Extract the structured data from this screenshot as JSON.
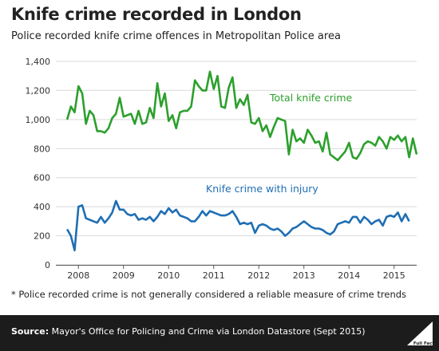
{
  "header": {
    "title": "Knife crime recorded in London",
    "subtitle": "Police recorded knife crime offences in Metropolitan Police area"
  },
  "note": "* Police recorded crime is not generally considered a reliable measure of crime trends",
  "footer": {
    "source_label": "Source:",
    "source_text": " Mayor's Office for Policing and Crime via London Datastore (Sept 2015)",
    "logo_text": "Full Fact"
  },
  "colors": {
    "total": "#2ca02c",
    "injury": "#1f6eb4",
    "grid": "#d9d9d9",
    "axis": "#555555",
    "footer_bg": "#1c1c1c"
  },
  "chart_data": {
    "type": "line",
    "x_start_year": 2007.75,
    "x_step_months": 1,
    "xlim": [
      2007.5,
      2015.5
    ],
    "ylim": [
      0,
      1400
    ],
    "y_ticks": [
      0,
      200,
      400,
      600,
      800,
      1000,
      1200,
      1400
    ],
    "y_tick_labels": [
      "0",
      "200",
      "400",
      "600",
      "800",
      "1,000",
      "1,200",
      "1,400"
    ],
    "x_ticks": [
      2008,
      2009,
      2010,
      2011,
      2012,
      2013,
      2014,
      2015
    ],
    "x_tick_labels": [
      "2008",
      "2009",
      "2010",
      "2011",
      "2012",
      "2013",
      "2014",
      "2015"
    ],
    "grid": true,
    "series": [
      {
        "name": "Total knife crime",
        "values": [
          1000,
          1090,
          1050,
          1230,
          1180,
          970,
          1060,
          1030,
          920,
          920,
          910,
          940,
          1010,
          1040,
          1150,
          1020,
          1030,
          1040,
          970,
          1060,
          970,
          980,
          1080,
          1010,
          1250,
          1090,
          1180,
          990,
          1030,
          940,
          1050,
          1060,
          1060,
          1090,
          1270,
          1230,
          1200,
          1200,
          1330,
          1210,
          1300,
          1090,
          1080,
          1220,
          1290,
          1080,
          1140,
          1100,
          1170,
          980,
          970,
          1010,
          920,
          960,
          880,
          950,
          1010,
          1000,
          990,
          760,
          930,
          850,
          870,
          840,
          930,
          890,
          840,
          850,
          780,
          910,
          760,
          740,
          720,
          750,
          780,
          840,
          740,
          730,
          770,
          830,
          850,
          840,
          820,
          880,
          850,
          800,
          880,
          860,
          890,
          850,
          880,
          740,
          870,
          760
        ]
      },
      {
        "name": "Knife crime with injury",
        "values": [
          245,
          200,
          100,
          400,
          410,
          320,
          310,
          300,
          290,
          330,
          290,
          320,
          360,
          440,
          380,
          380,
          350,
          340,
          350,
          310,
          320,
          310,
          330,
          300,
          330,
          370,
          350,
          390,
          360,
          380,
          340,
          330,
          320,
          300,
          300,
          330,
          370,
          340,
          370,
          360,
          350,
          340,
          340,
          350,
          370,
          330,
          280,
          290,
          280,
          290,
          220,
          270,
          280,
          270,
          250,
          240,
          250,
          230,
          200,
          220,
          250,
          260,
          280,
          300,
          280,
          260,
          250,
          250,
          240,
          220,
          210,
          230,
          280,
          290,
          300,
          290,
          330,
          330,
          290,
          330,
          310,
          280,
          300,
          310,
          270,
          330,
          340,
          330,
          360,
          300,
          350,
          300
        ]
      }
    ],
    "annotations": [
      {
        "series": "Total knife crime",
        "text": "Total knife crime"
      },
      {
        "series": "Knife crime with injury",
        "text": "Knife crime with injury"
      }
    ]
  }
}
